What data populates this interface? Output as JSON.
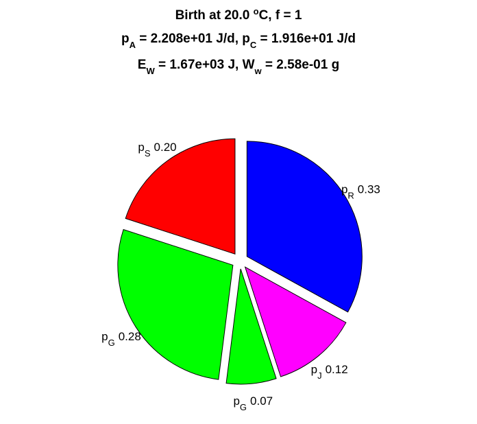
{
  "chart_data": {
    "type": "pie",
    "title": [
      [
        "Birth at 20.0 ",
        {
          "sup": "o"
        },
        "C, f = 1"
      ],
      [
        "p",
        {
          "sub": "A"
        },
        " = 2.208e+01 J/d, p",
        {
          "sub": "C"
        },
        " = 1.916e+01 J/d"
      ],
      [
        "E",
        {
          "sub": "W"
        },
        " = 1.67e+03 J, W",
        {
          "sub": "w"
        },
        " = 2.58e-01 g"
      ]
    ],
    "categories": [
      [
        "p",
        {
          "sub": "R"
        }
      ],
      [
        "p",
        {
          "sub": "J"
        }
      ],
      [
        "p",
        {
          "sub": "G"
        }
      ],
      [
        "p",
        {
          "sub": "G"
        }
      ],
      [
        "p",
        {
          "sub": "S"
        }
      ]
    ],
    "values": [
      0.33,
      0.12,
      0.07,
      0.28,
      0.2
    ],
    "value_labels": [
      "0.33",
      "0.12",
      "0.07",
      "0.28",
      "0.20"
    ],
    "colors": [
      "#0000ff",
      "#ff00ff",
      "#00ff00",
      "#00ff00",
      "#ff0000"
    ],
    "explode": true,
    "direction": "clockwise",
    "start_angle": 90
  }
}
